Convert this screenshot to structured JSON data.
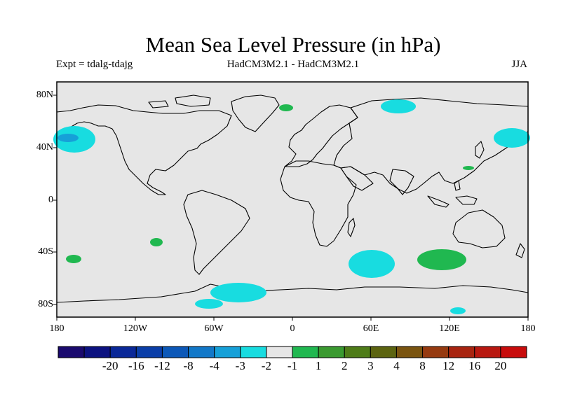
{
  "header": {
    "title": "Mean Sea Level Pressure (in hPa)",
    "experiment": "Expt = tdalg-tdajg",
    "models": "HadCM3M2.1 - HadCM3M2.1",
    "season": "JJA"
  },
  "map": {
    "projection": "cylindrical equidistant",
    "background_color": "#e6e6e6",
    "lat_labels": [
      "80N",
      "40N",
      "0",
      "40S",
      "80S"
    ],
    "lon_labels": [
      "180",
      "120W",
      "60W",
      "0",
      "60E",
      "120E",
      "180"
    ]
  },
  "colorbar": {
    "labels": [
      "-20",
      "-16",
      "-12",
      "-8",
      "-4",
      "-3",
      "-2",
      "-1",
      "1",
      "2",
      "3",
      "4",
      "8",
      "12",
      "16",
      "20"
    ],
    "colors": [
      "#1a0a6e",
      "#0c1280",
      "#0a2898",
      "#0a3ea8",
      "#0c58b8",
      "#1278c8",
      "#16a0d8",
      "#18dce0",
      "#e6e6e6",
      "#20b850",
      "#3a9a30",
      "#4e7c18",
      "#5c6410",
      "#7a5410",
      "#963a10",
      "#a82410",
      "#b81810",
      "#c80c0c"
    ]
  }
}
